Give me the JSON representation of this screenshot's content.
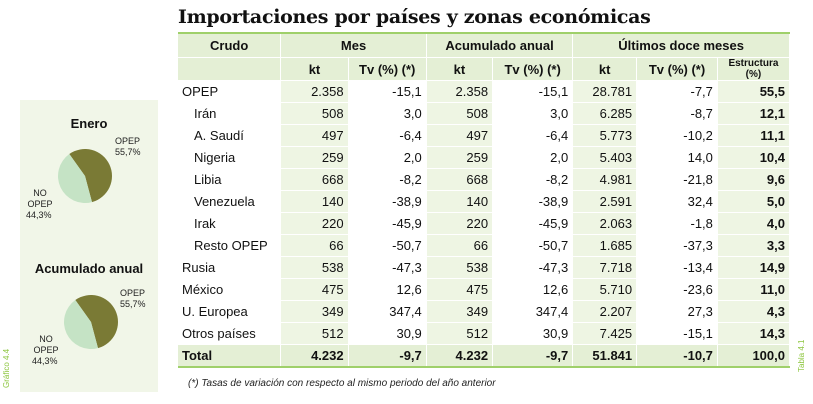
{
  "title": "Importaciones por países y zonas económicas",
  "graph_label": "Gráfico 4.4",
  "table_label": "Tabla 4.1",
  "footnote": "(*) Tasas de variación con respecto al mismo periodo del año anterior",
  "colors": {
    "opep": "#7a7a35",
    "no_opep": "#c5e3c5",
    "accent": "#9fd06a"
  },
  "chart_data": [
    {
      "type": "pie",
      "title": "Enero",
      "slices": [
        {
          "label": "OPEP",
          "value": 55.7,
          "value_label": "55,7%"
        },
        {
          "label": "NO OPEP",
          "value": 44.3,
          "value_label": "44,3%"
        }
      ]
    },
    {
      "type": "pie",
      "title": "Acumulado anual",
      "slices": [
        {
          "label": "OPEP",
          "value": 55.7,
          "value_label": "55,7%"
        },
        {
          "label": "NO OPEP",
          "value": 44.3,
          "value_label": "44,3%"
        }
      ]
    }
  ],
  "table": {
    "groups": [
      "Crudo",
      "Mes",
      "Acumulado anual",
      "Últimos doce meses"
    ],
    "subheaders": [
      "kt",
      "Tv (%) (*)",
      "kt",
      "Tv (%) (*)",
      "kt",
      "Tv (%) (*)",
      "Estructura (%)"
    ],
    "rows": [
      {
        "name": "OPEP",
        "indent": false,
        "values": [
          "2.358",
          "-15,1",
          "2.358",
          "-15,1",
          "28.781",
          "-7,7",
          "55,5"
        ]
      },
      {
        "name": "Irán",
        "indent": true,
        "values": [
          "508",
          "3,0",
          "508",
          "3,0",
          "6.285",
          "-8,7",
          "12,1"
        ]
      },
      {
        "name": "A. Saudí",
        "indent": true,
        "values": [
          "497",
          "-6,4",
          "497",
          "-6,4",
          "5.773",
          "-10,2",
          "11,1"
        ]
      },
      {
        "name": "Nigeria",
        "indent": true,
        "values": [
          "259",
          "2,0",
          "259",
          "2,0",
          "5.403",
          "14,0",
          "10,4"
        ]
      },
      {
        "name": "Libia",
        "indent": true,
        "values": [
          "668",
          "-8,2",
          "668",
          "-8,2",
          "4.981",
          "-21,8",
          "9,6"
        ]
      },
      {
        "name": "Venezuela",
        "indent": true,
        "values": [
          "140",
          "-38,9",
          "140",
          "-38,9",
          "2.591",
          "32,4",
          "5,0"
        ]
      },
      {
        "name": "Irak",
        "indent": true,
        "values": [
          "220",
          "-45,9",
          "220",
          "-45,9",
          "2.063",
          "-1,8",
          "4,0"
        ]
      },
      {
        "name": "Resto OPEP",
        "indent": true,
        "values": [
          "66",
          "-50,7",
          "66",
          "-50,7",
          "1.685",
          "-37,3",
          "3,3"
        ]
      },
      {
        "name": "Rusia",
        "indent": false,
        "values": [
          "538",
          "-47,3",
          "538",
          "-47,3",
          "7.718",
          "-13,4",
          "14,9"
        ]
      },
      {
        "name": "México",
        "indent": false,
        "values": [
          "475",
          "12,6",
          "475",
          "12,6",
          "5.710",
          "-23,6",
          "11,0"
        ]
      },
      {
        "name": "U. Europea",
        "indent": false,
        "values": [
          "349",
          "347,4",
          "349",
          "347,4",
          "2.207",
          "27,3",
          "4,3"
        ]
      },
      {
        "name": "Otros países",
        "indent": false,
        "values": [
          "512",
          "30,9",
          "512",
          "30,9",
          "7.425",
          "-15,1",
          "14,3"
        ]
      }
    ],
    "total": {
      "name": "Total",
      "values": [
        "4.232",
        "-9,7",
        "4.232",
        "-9,7",
        "51.841",
        "-10,7",
        "100,0"
      ]
    }
  }
}
